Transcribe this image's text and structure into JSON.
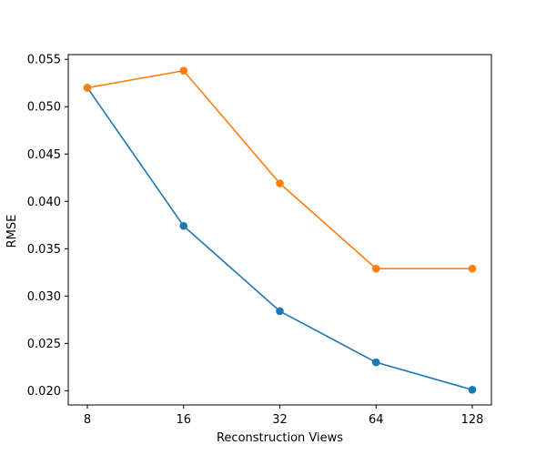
{
  "chart_data": {
    "type": "line",
    "title": "",
    "xlabel": "Reconstruction Views",
    "ylabel": "RMSE",
    "categories": [
      "8",
      "16",
      "32",
      "64",
      "128"
    ],
    "yticks": [
      "0.020",
      "0.025",
      "0.030",
      "0.035",
      "0.040",
      "0.045",
      "0.050",
      "0.055"
    ],
    "ylim": [
      0.0185,
      0.0555
    ],
    "grid": false,
    "legend": "none",
    "series": [
      {
        "color": "#1f77b4",
        "values": [
          0.052,
          0.0374,
          0.0284,
          0.023,
          0.0201
        ]
      },
      {
        "color": "#ff7f0e",
        "values": [
          0.052,
          0.0538,
          0.0419,
          0.0329,
          0.0329
        ]
      }
    ]
  }
}
